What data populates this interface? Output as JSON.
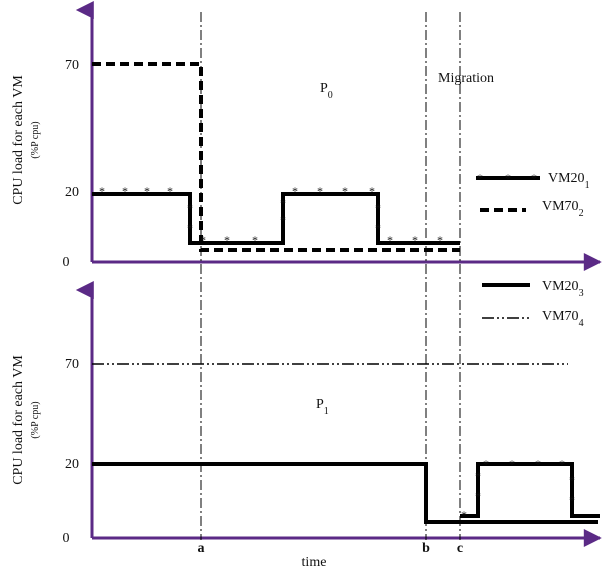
{
  "chart_data": [
    {
      "type": "line",
      "panel": "P0",
      "title": "P",
      "title_sub": "0",
      "annotation": "Migration",
      "ylabel": "CPU load for each VM",
      "ylabel_sub": "(%P cpu)",
      "yticks": [
        0,
        20,
        70
      ],
      "ylim": [
        0,
        90
      ],
      "x_markers": [
        "a",
        "b",
        "c"
      ],
      "series": [
        {
          "name": "VM20",
          "name_sub": "1",
          "style": "solid-star",
          "points": [
            {
              "x": "start",
              "y": 20
            },
            {
              "x": "a",
              "y": 20
            },
            {
              "x": "a",
              "y": 4
            },
            {
              "x": "a+",
              "y": 4
            },
            {
              "x": "a+",
              "y": 20
            },
            {
              "x": "a++",
              "y": 20
            },
            {
              "x": "a++",
              "y": 4
            },
            {
              "x": "c",
              "y": 4
            }
          ]
        },
        {
          "name": "VM70",
          "name_sub": "2",
          "style": "dashed",
          "points": [
            {
              "x": "start",
              "y": 70
            },
            {
              "x": "a",
              "y": 70
            },
            {
              "x": "a",
              "y": 2
            },
            {
              "x": "c",
              "y": 2
            }
          ]
        }
      ]
    },
    {
      "type": "line",
      "panel": "P1",
      "title": "P",
      "title_sub": "1",
      "ylabel": "CPU load for each VM",
      "ylabel_sub": "(%P cpu)",
      "xlabel": "time",
      "yticks": [
        0,
        20,
        70
      ],
      "ylim": [
        0,
        90
      ],
      "x_markers": [
        "a",
        "b",
        "c"
      ],
      "series": [
        {
          "name": "VM20",
          "name_sub": "3",
          "style": "solid",
          "points": [
            {
              "x": "start",
              "y": 20
            },
            {
              "x": "b",
              "y": 20
            },
            {
              "x": "b",
              "y": 4
            },
            {
              "x": "end",
              "y": 4
            }
          ]
        },
        {
          "name": "VM70",
          "name_sub": "4",
          "style": "dashdotdot",
          "points": [
            {
              "x": "start",
              "y": 70
            },
            {
              "x": "end",
              "y": 70
            }
          ]
        },
        {
          "name": "VM20",
          "name_sub": "1",
          "style": "solid-star",
          "points": [
            {
              "x": "c",
              "y": 4
            },
            {
              "x": "c+",
              "y": 4
            },
            {
              "x": "c+",
              "y": 20
            },
            {
              "x": "c++",
              "y": 20
            },
            {
              "x": "c++",
              "y": 6
            },
            {
              "x": "end",
              "y": 6
            }
          ]
        }
      ]
    }
  ]
}
